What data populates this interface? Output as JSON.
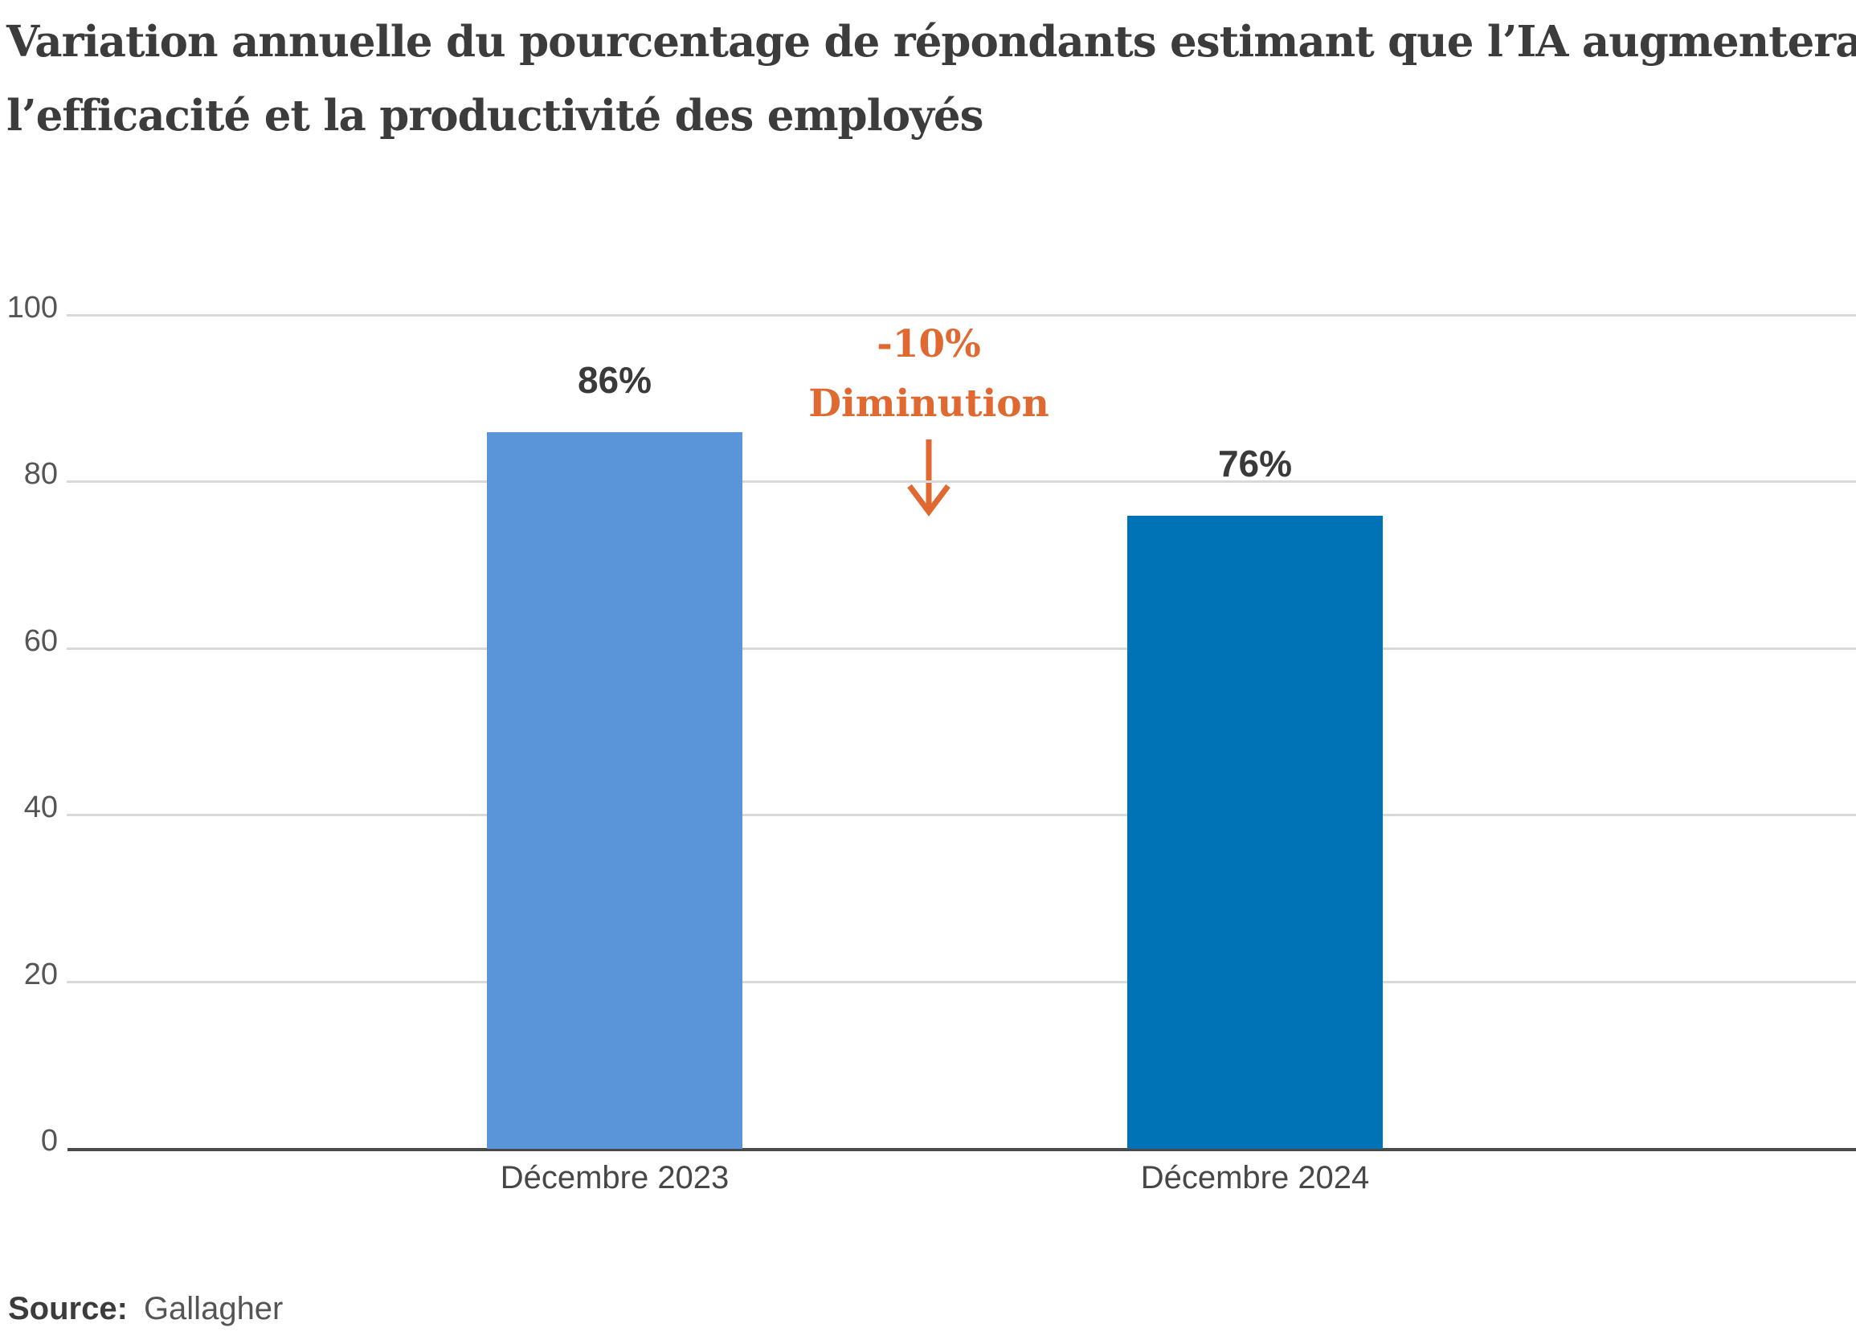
{
  "title": {
    "lines": [
      "Variation annuelle du pourcentage de répondants estimant que l’IA augmentera",
      "l’efficacité et la productivité des employés"
    ]
  },
  "chart_data": {
    "type": "bar",
    "title": "Variation annuelle du pourcentage de répondants estimant que l’IA augmentera l’efficacité et la productivité des employés",
    "categories": [
      "Décembre 2023",
      "Décembre 2024"
    ],
    "values": [
      86,
      76
    ],
    "value_labels": [
      "86%",
      "76%"
    ],
    "xlabel": "",
    "ylabel": "",
    "ylim": [
      0,
      100
    ],
    "yticks": [
      0,
      20,
      40,
      60,
      80,
      100
    ],
    "grid": true,
    "legend": false,
    "bar_colors": [
      "#5995D8",
      "#0073B7"
    ],
    "annotation": {
      "lines": [
        "-10%",
        "Diminution"
      ],
      "arrow": "down",
      "color": "#DF6930"
    }
  },
  "source": {
    "label": "Source:",
    "value": "Gallagher"
  },
  "colors": {
    "bar_dec_2023": "#5995D8",
    "bar_dec_2024": "#0073B7",
    "annotation_orange": "#DF6930",
    "gridline": "#D9D9D9",
    "axis_line": "#4A4A4A",
    "title_text": "#3C3C3C",
    "tick_text": "#555555"
  }
}
